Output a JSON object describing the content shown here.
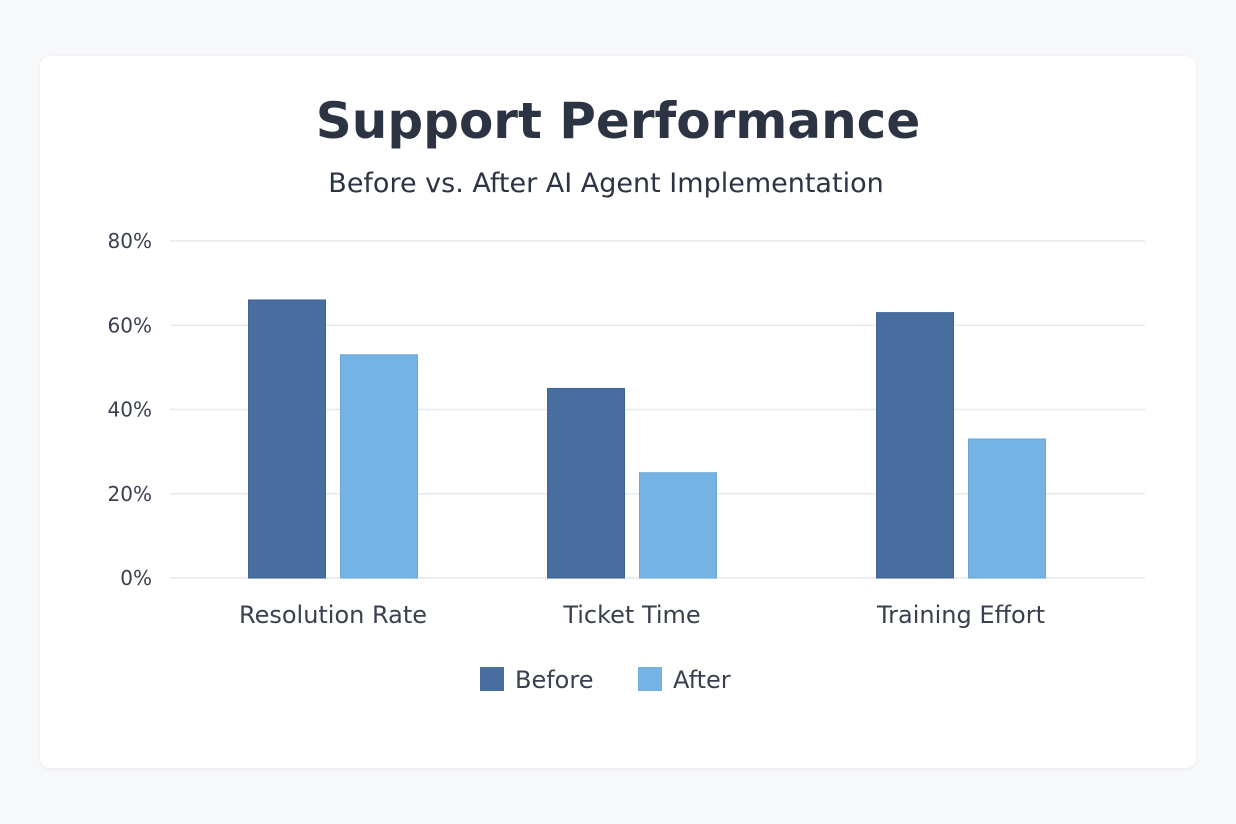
{
  "chart_data": {
    "type": "bar",
    "title": "Support Performance",
    "subtitle": "Before vs. After AI Agent Implementation",
    "categories": [
      "Resolution Rate",
      "Ticket Time",
      "Training Effort"
    ],
    "series": [
      {
        "name": "Before",
        "values": [
          66,
          45,
          63
        ],
        "color": "#476e9e"
      },
      {
        "name": "After",
        "values": [
          53,
          25,
          33
        ],
        "color": "#74b3e3"
      }
    ],
    "ylim": [
      0,
      80
    ],
    "yticks": [
      "0%",
      "20%",
      "40%",
      "60%",
      "80%"
    ],
    "ytick_values": [
      0,
      20,
      40,
      60,
      80
    ],
    "grid": true,
    "legend_position": "bottom"
  }
}
